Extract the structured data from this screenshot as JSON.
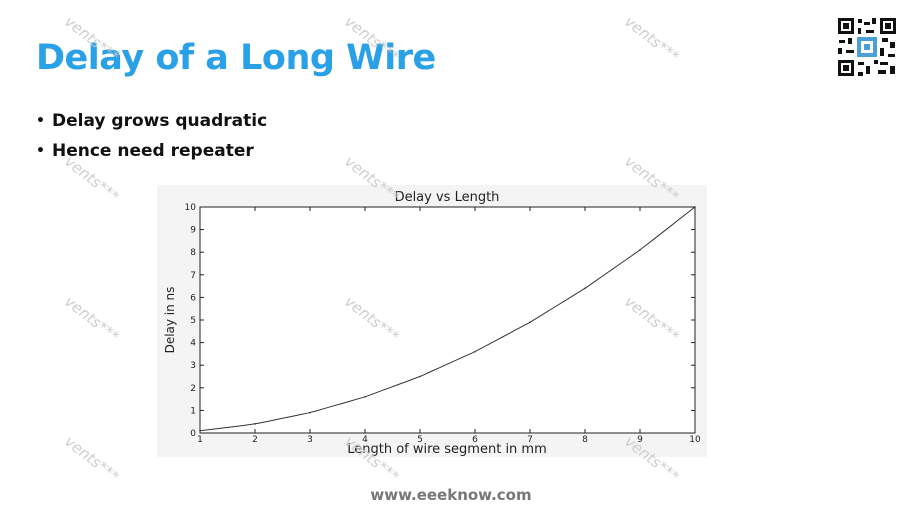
{
  "slide": {
    "title": "Delay of a Long Wire",
    "bullets": [
      "Delay grows quadratic",
      "Hence need repeater"
    ],
    "footer": "www.eeeknow.com",
    "watermark": "vents***"
  },
  "chart_data": {
    "type": "line",
    "title": "Delay vs Length",
    "xlabel": "Length of wire segment in mm",
    "ylabel": "Delay in ns",
    "xlim": [
      1,
      10
    ],
    "ylim": [
      0,
      10
    ],
    "xticks": [
      1,
      2,
      3,
      4,
      5,
      6,
      7,
      8,
      9,
      10
    ],
    "yticks": [
      0,
      1,
      2,
      3,
      4,
      5,
      6,
      7,
      8,
      9,
      10
    ],
    "grid": false,
    "series": [
      {
        "x": [
          1,
          2,
          3,
          4,
          5,
          6,
          7,
          8,
          9,
          10
        ],
        "y": [
          0.1,
          0.4,
          0.9,
          1.6,
          2.5,
          3.6,
          4.9,
          6.4,
          8.1,
          10.0
        ]
      }
    ],
    "colors": {
      "line": "#333333",
      "axes": "#222222"
    }
  }
}
